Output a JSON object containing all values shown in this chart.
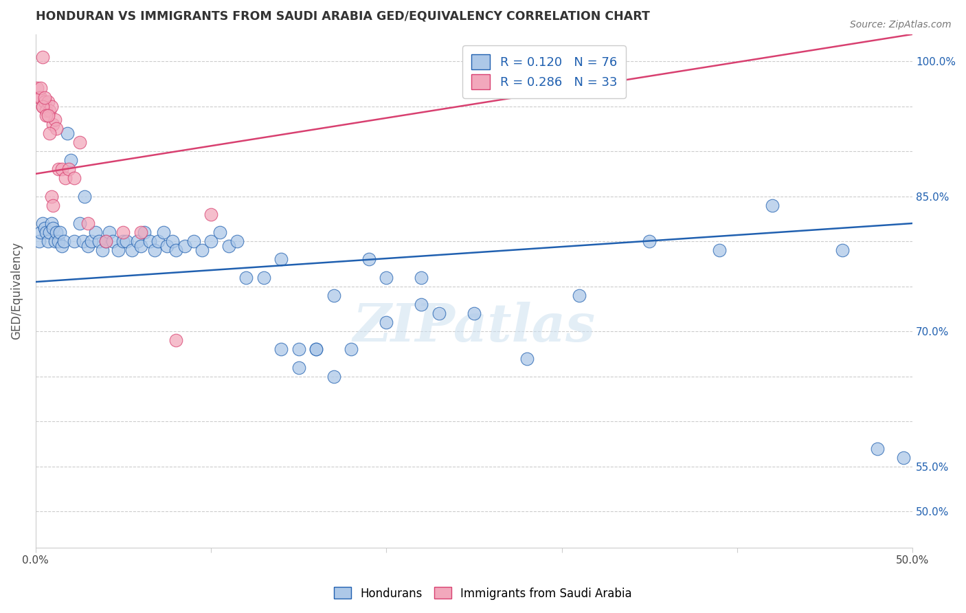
{
  "title": "HONDURAN VS IMMIGRANTS FROM SAUDI ARABIA GED/EQUIVALENCY CORRELATION CHART",
  "source": "Source: ZipAtlas.com",
  "ylabel": "GED/Equivalency",
  "xlim": [
    0.0,
    0.5
  ],
  "ylim": [
    0.46,
    1.03
  ],
  "blue_R": 0.12,
  "blue_N": 76,
  "pink_R": 0.286,
  "pink_N": 33,
  "legend_labels": [
    "Hondurans",
    "Immigrants from Saudi Arabia"
  ],
  "blue_color": "#adc8e8",
  "pink_color": "#f2a8bc",
  "blue_line_color": "#2060b0",
  "pink_line_color": "#d84070",
  "watermark": "ZIPatlas",
  "blue_line_x0": 0.0,
  "blue_line_y0": 0.755,
  "blue_line_x1": 0.5,
  "blue_line_y1": 0.82,
  "pink_line_x0": 0.0,
  "pink_line_y0": 0.875,
  "pink_line_x1": 0.5,
  "pink_line_y1": 1.03,
  "blue_scatter_x": [
    0.002,
    0.003,
    0.004,
    0.005,
    0.006,
    0.007,
    0.008,
    0.009,
    0.01,
    0.011,
    0.012,
    0.013,
    0.014,
    0.015,
    0.016,
    0.018,
    0.02,
    0.022,
    0.025,
    0.027,
    0.028,
    0.03,
    0.032,
    0.034,
    0.036,
    0.038,
    0.04,
    0.042,
    0.044,
    0.047,
    0.05,
    0.052,
    0.055,
    0.058,
    0.06,
    0.062,
    0.065,
    0.068,
    0.07,
    0.073,
    0.075,
    0.078,
    0.08,
    0.085,
    0.09,
    0.095,
    0.1,
    0.105,
    0.11,
    0.115,
    0.12,
    0.13,
    0.14,
    0.15,
    0.16,
    0.17,
    0.19,
    0.2,
    0.22,
    0.25,
    0.28,
    0.31,
    0.35,
    0.39,
    0.42,
    0.46,
    0.48,
    0.495,
    0.15,
    0.18,
    0.2,
    0.23,
    0.22,
    0.14,
    0.16,
    0.17
  ],
  "blue_scatter_y": [
    0.8,
    0.81,
    0.82,
    0.815,
    0.81,
    0.8,
    0.81,
    0.82,
    0.815,
    0.8,
    0.81,
    0.8,
    0.81,
    0.795,
    0.8,
    0.92,
    0.89,
    0.8,
    0.82,
    0.8,
    0.85,
    0.795,
    0.8,
    0.81,
    0.8,
    0.79,
    0.8,
    0.81,
    0.8,
    0.79,
    0.8,
    0.8,
    0.79,
    0.8,
    0.795,
    0.81,
    0.8,
    0.79,
    0.8,
    0.81,
    0.795,
    0.8,
    0.79,
    0.795,
    0.8,
    0.79,
    0.8,
    0.81,
    0.795,
    0.8,
    0.76,
    0.76,
    0.78,
    0.68,
    0.68,
    0.74,
    0.78,
    0.76,
    0.73,
    0.72,
    0.67,
    0.74,
    0.8,
    0.79,
    0.84,
    0.79,
    0.57,
    0.56,
    0.66,
    0.68,
    0.71,
    0.72,
    0.76,
    0.68,
    0.68,
    0.65
  ],
  "pink_scatter_x": [
    0.001,
    0.002,
    0.003,
    0.004,
    0.005,
    0.006,
    0.007,
    0.008,
    0.009,
    0.01,
    0.011,
    0.012,
    0.013,
    0.015,
    0.017,
    0.019,
    0.022,
    0.025,
    0.03,
    0.04,
    0.05,
    0.06,
    0.08,
    0.1,
    0.003,
    0.004,
    0.005,
    0.006,
    0.007,
    0.008,
    0.009,
    0.01,
    0.004
  ],
  "pink_scatter_y": [
    0.97,
    0.96,
    0.96,
    0.95,
    0.955,
    0.945,
    0.955,
    0.945,
    0.95,
    0.93,
    0.935,
    0.925,
    0.88,
    0.88,
    0.87,
    0.88,
    0.87,
    0.91,
    0.82,
    0.8,
    0.81,
    0.81,
    0.69,
    0.83,
    0.97,
    0.95,
    0.96,
    0.94,
    0.94,
    0.92,
    0.85,
    0.84,
    1.005
  ]
}
